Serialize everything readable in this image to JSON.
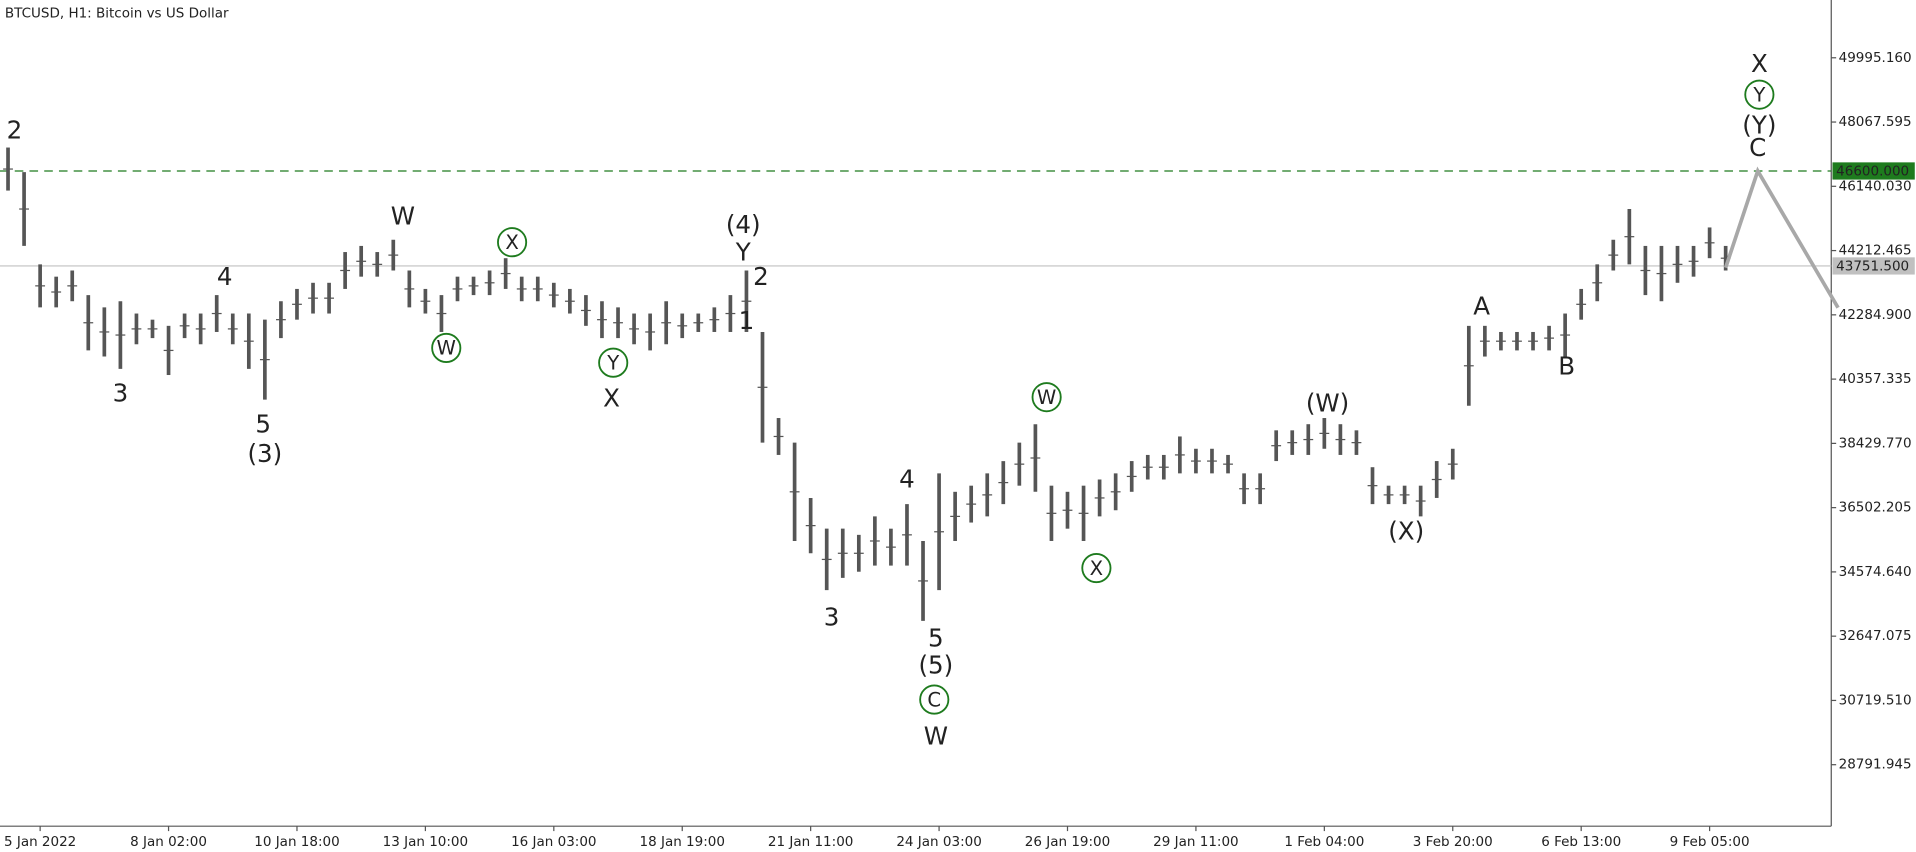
{
  "chart_data": {
    "type": "ohlc",
    "title": "BTCUSD, H1:  Bitcoin vs US Dollar",
    "color": "#555555",
    "categories": [
      null,
      null,
      "5 Jan 2022",
      null,
      null,
      null,
      null,
      null,
      null,
      null,
      "8 Jan 02:00",
      null,
      null,
      null,
      null,
      null,
      null,
      null,
      "10 Jan 18:00",
      null,
      null,
      null,
      null,
      null,
      null,
      null,
      "13 Jan 10:00",
      null,
      null,
      null,
      null,
      null,
      null,
      null,
      "16 Jan 03:00",
      null,
      null,
      null,
      null,
      null,
      null,
      null,
      "18 Jan 19:00",
      null,
      null,
      null,
      null,
      null,
      null,
      null,
      "21 Jan 11:00",
      null,
      null,
      null,
      null,
      null,
      null,
      null,
      "24 Jan 03:00",
      null,
      null,
      null,
      null,
      null,
      null,
      null,
      "26 Jan 19:00",
      null,
      null,
      null,
      null,
      null,
      null,
      null,
      "29 Jan 11:00",
      null,
      null,
      null,
      null,
      null,
      null,
      null,
      "1 Feb 04:00",
      null,
      null,
      null,
      null,
      null,
      null,
      null,
      "3 Feb 20:00",
      null,
      null,
      null,
      null,
      null,
      null,
      null,
      "6 Feb 13:00",
      null,
      null,
      null,
      null,
      null,
      null,
      null,
      "9 Feb 05:00",
      null
    ],
    "high": [
      47303,
      46565,
      43799,
      43430,
      43615,
      42877,
      42509,
      42693,
      42324,
      42140,
      41955,
      42324,
      42324,
      42877,
      42324,
      42324,
      42140,
      42693,
      43062,
      43246,
      43246,
      44168,
      44352,
      44168,
      44537,
      43615,
      43062,
      42877,
      43430,
      43430,
      43615,
      43984,
      43430,
      43430,
      43246,
      43062,
      42877,
      42693,
      42509,
      42324,
      42324,
      42693,
      42324,
      42324,
      42509,
      42877,
      43615,
      41771,
      39190,
      38452,
      36793,
      35871,
      35871,
      35686,
      36240,
      35871,
      36608,
      35502,
      37530,
      36977,
      37161,
      37530,
      37899,
      38452,
      39005,
      37161,
      36977,
      37161,
      37346,
      37530,
      37899,
      38083,
      38083,
      38637,
      38268,
      38268,
      38083,
      37530,
      37530,
      38821,
      38821,
      39005,
      39190,
      39005,
      38821,
      37715,
      37161,
      37161,
      37161,
      37899,
      38268,
      41955,
      41955,
      41771,
      41771,
      41771,
      41955,
      42324,
      43062,
      43799,
      44537,
      45459,
      44352,
      44352,
      44352,
      44352,
      44906,
      44352
    ],
    "low": [
      46012,
      44352,
      42509,
      42509,
      42693,
      41218,
      41034,
      40665,
      41402,
      41587,
      40480,
      41587,
      41402,
      41771,
      41402,
      40665,
      39743,
      41587,
      42140,
      42324,
      42324,
      43062,
      43430,
      43430,
      43615,
      42509,
      42324,
      41771,
      42693,
      42877,
      42877,
      43062,
      42693,
      42693,
      42509,
      42324,
      41955,
      41587,
      41587,
      41402,
      41218,
      41402,
      41587,
      41771,
      41771,
      41771,
      41771,
      38452,
      38083,
      35502,
      35133,
      34027,
      34396,
      34580,
      34764,
      34764,
      34764,
      33106,
      34027,
      35502,
      36055,
      36240,
      36608,
      37161,
      36977,
      35502,
      35871,
      35502,
      36240,
      36424,
      36977,
      37346,
      37346,
      37530,
      37530,
      37530,
      37530,
      36608,
      36608,
      37899,
      38083,
      38083,
      38268,
      38083,
      38083,
      36608,
      36608,
      36608,
      36240,
      36793,
      37346,
      39559,
      41034,
      41218,
      41218,
      41218,
      41218,
      41034,
      42140,
      42693,
      43615,
      43799,
      42877,
      42693,
      43246,
      43430,
      43984,
      43615
    ],
    "ylim": [
      26948,
      51728
    ],
    "yticks": [
      {
        "value": 49995.16,
        "label": "49995.160"
      },
      48067.595,
      {
        "value": 46140.03,
        "label": "46140.030"
      },
      44212.465,
      {
        "value": 42284.9,
        "label": "42284.900"
      },
      40357.335,
      {
        "value": 38429.77,
        "label": "38429.770"
      },
      36502.205,
      {
        "value": 34574.64,
        "label": "34574.640"
      },
      32647.075,
      {
        "value": 30719.51,
        "label": "30719.510"
      },
      28791.945
    ],
    "levels": [
      {
        "value": 46600,
        "label": "46600.000",
        "color": "#1e7b1e",
        "dashed": true
      },
      {
        "value": 43751.5,
        "label": "43751.500",
        "color": "#c0c0c0",
        "dashed": false
      }
    ],
    "projection": {
      "x": [
        107,
        109,
        114
      ],
      "values": [
        43700,
        46600,
        42500
      ],
      "color": "#a8a8a8"
    },
    "annotations": [
      {
        "text": "2",
        "x": 0.4,
        "y": 47782,
        "color": "#8b1a1a"
      },
      {
        "text": "3",
        "x": 7.0,
        "y": 39890,
        "color": "#8b1a1a"
      },
      {
        "text": "4",
        "x": 13.5,
        "y": 43394,
        "color": "#8b1a1a"
      },
      {
        "text": "5",
        "x": 15.9,
        "y": 38968,
        "color": "#8b1a1a"
      },
      {
        "text": "(3)",
        "x": 16.0,
        "y": 38083,
        "color": "#1c1c7c"
      },
      {
        "text": "W",
        "x": 24.6,
        "y": 45201,
        "color": "#8b1a1a"
      },
      {
        "text": "W",
        "x": 27.3,
        "y": 41292,
        "color": "#1e7b1e",
        "circled": true
      },
      {
        "text": "X",
        "x": 31.4,
        "y": 44463,
        "color": "#1e7b1e",
        "circled": true
      },
      {
        "text": "Y",
        "x": 37.7,
        "y": 40849,
        "color": "#1e7b1e",
        "circled": true
      },
      {
        "text": "X",
        "x": 37.6,
        "y": 39743,
        "color": "#8b1a1a"
      },
      {
        "text": "(4)",
        "x": 45.8,
        "y": 44942,
        "color": "#1c1c7c"
      },
      {
        "text": "Y",
        "x": 45.8,
        "y": 44131,
        "color": "#8b1a1a"
      },
      {
        "text": "2",
        "x": 46.9,
        "y": 43394,
        "color": "#8b1a1a"
      },
      {
        "text": "1",
        "x": 46.0,
        "y": 42066,
        "color": "#8b1a1a"
      },
      {
        "text": "3",
        "x": 51.3,
        "y": 33179,
        "color": "#8b1a1a"
      },
      {
        "text": "4",
        "x": 56.0,
        "y": 37309,
        "color": "#8b1a1a"
      },
      {
        "text": "5",
        "x": 57.8,
        "y": 32552,
        "color": "#8b1a1a"
      },
      {
        "text": "(5)",
        "x": 57.8,
        "y": 31741,
        "color": "#1c1c7c"
      },
      {
        "text": "C",
        "x": 57.7,
        "y": 30745,
        "color": "#1e7b1e",
        "circled": true
      },
      {
        "text": "W",
        "x": 57.8,
        "y": 29601,
        "color": "#8b1a1a"
      },
      {
        "text": "W",
        "x": 64.7,
        "y": 39816,
        "color": "#1e7b1e",
        "circled": true
      },
      {
        "text": "X",
        "x": 67.8,
        "y": 34690,
        "color": "#1e7b1e",
        "circled": true
      },
      {
        "text": "(W)",
        "x": 82.2,
        "y": 39595,
        "color": "#1c1c7c"
      },
      {
        "text": "(X)",
        "x": 87.1,
        "y": 35760,
        "color": "#1c1c7c"
      },
      {
        "text": "A",
        "x": 91.8,
        "y": 42508,
        "color": "#8b1a1a"
      },
      {
        "text": "B",
        "x": 97.1,
        "y": 40701,
        "color": "#8b1a1a"
      },
      {
        "text": "C",
        "x": 109.0,
        "y": 47266,
        "color": "#8b1a1a"
      },
      {
        "text": "(Y)",
        "x": 109.1,
        "y": 47930,
        "color": "#1c1c7c"
      },
      {
        "text": "Y",
        "x": 109.1,
        "y": 48889,
        "color": "#1e7b1e",
        "circled": true
      },
      {
        "text": "X",
        "x": 109.1,
        "y": 49774,
        "color": "#8b1a1a"
      }
    ]
  }
}
